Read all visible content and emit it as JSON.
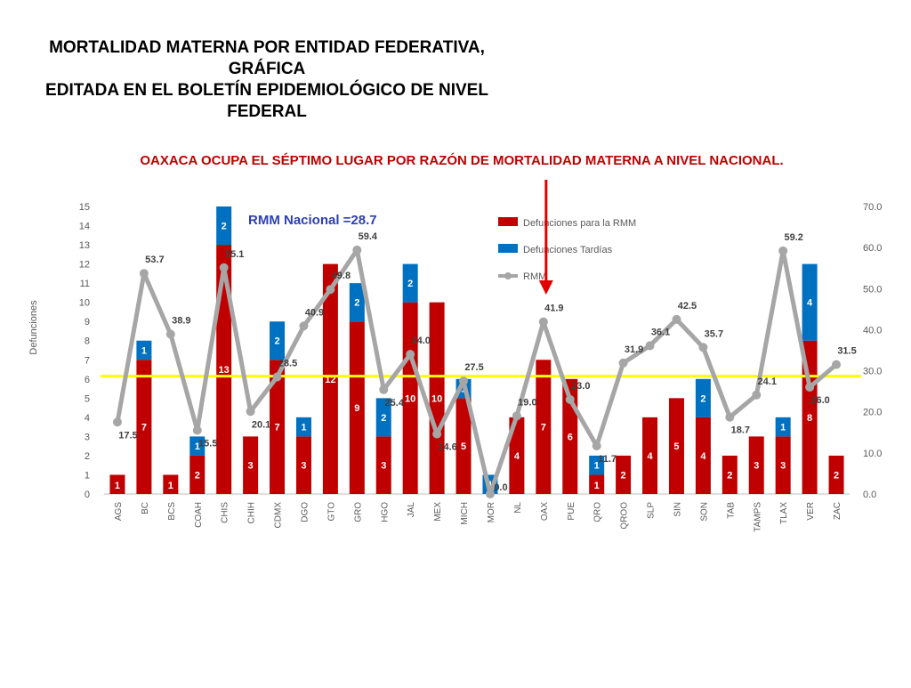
{
  "slide": {
    "title_lines": [
      "MORTALIDAD MATERNA POR ENTIDAD FEDERATIVA,",
      "GRÁFICA",
      "EDITADA EN EL BOLETÍN EPIDEMIOLÓGICO DE NIVEL",
      "FEDERAL"
    ],
    "subtitle": "OAXACA OCUPA EL SÉPTIMO LUGAR POR RAZÓN DE MORTALIDAD MATERNA A NIVEL NACIONAL.",
    "subtitle_color": "#c00000",
    "arrow_color": "#e00000",
    "arrow_target": "OAX"
  },
  "chart_data": {
    "type": "bar",
    "stacked": true,
    "categories": [
      "AGS",
      "BC",
      "BCS",
      "COAH",
      "CHIS",
      "CHIH",
      "CDMX",
      "DGO",
      "GTO",
      "GRO",
      "HGO",
      "JAL",
      "MEX",
      "MICH",
      "MOR",
      "NL",
      "OAX",
      "PUE",
      "QRO",
      "QROO",
      "SLP",
      "SIN",
      "SON",
      "TAB",
      "TAMPS",
      "TLAX",
      "VER",
      "ZAC"
    ],
    "series": [
      {
        "name": "Defunciones para la RMM",
        "color": "#c00000",
        "values": [
          1,
          7,
          1,
          2,
          13,
          3,
          7,
          3,
          12,
          9,
          3,
          10,
          10,
          5,
          0,
          4,
          7,
          6,
          1,
          2,
          4,
          5,
          4,
          2,
          3,
          3,
          8,
          2
        ]
      },
      {
        "name": "Defunciones Tardías",
        "color": "#0070c0",
        "values": [
          0,
          1,
          0,
          1,
          2,
          0,
          2,
          1,
          0,
          2,
          2,
          2,
          0,
          1,
          1,
          0,
          0,
          0,
          1,
          0,
          0,
          0,
          2,
          0,
          0,
          1,
          4,
          0
        ]
      }
    ],
    "line_series": {
      "name": "RMM",
      "color": "#a6a6a6",
      "axis": "right",
      "values": [
        17.5,
        53.7,
        38.9,
        15.5,
        55.1,
        20.1,
        28.5,
        40.9,
        49.8,
        59.4,
        25.4,
        34.0,
        14.6,
        27.5,
        0.0,
        19.0,
        41.9,
        23.0,
        11.7,
        31.9,
        36.1,
        42.5,
        35.7,
        18.7,
        24.1,
        59.2,
        26.0,
        31.5
      ],
      "labels": [
        "17.5",
        "53.7",
        "38.9",
        "15.5",
        "55.1",
        "20.1",
        "28.5",
        "40.9",
        "49.8",
        "59.4",
        "25.4",
        "34.0",
        "14.6",
        "27.5",
        "0.0",
        "19.0",
        "41.9",
        "23.0",
        "11.7",
        "31.9",
        "36.1",
        "42.5",
        "35.7",
        "18.7",
        "24.1",
        "59.2",
        "26.0",
        "31.5"
      ]
    },
    "national_line": {
      "label": "RMM Nacional =28.7",
      "value": 28.7,
      "color": "#ffff00",
      "label_color": "#2e3fb5"
    },
    "ylabel": "Defunciones",
    "ylim": [
      0,
      15
    ],
    "y_ticks": [
      "0",
      "1",
      "2",
      "3",
      "4",
      "5",
      "6",
      "7",
      "8",
      "9",
      "10",
      "11",
      "12",
      "13",
      "14",
      "15"
    ],
    "y2lim": [
      0,
      70
    ],
    "y2_ticks": [
      "0.0",
      "10.0",
      "20.0",
      "30.0",
      "40.0",
      "50.0",
      "60.0",
      "70.0"
    ],
    "legend_position": "top-right",
    "grid": false
  }
}
